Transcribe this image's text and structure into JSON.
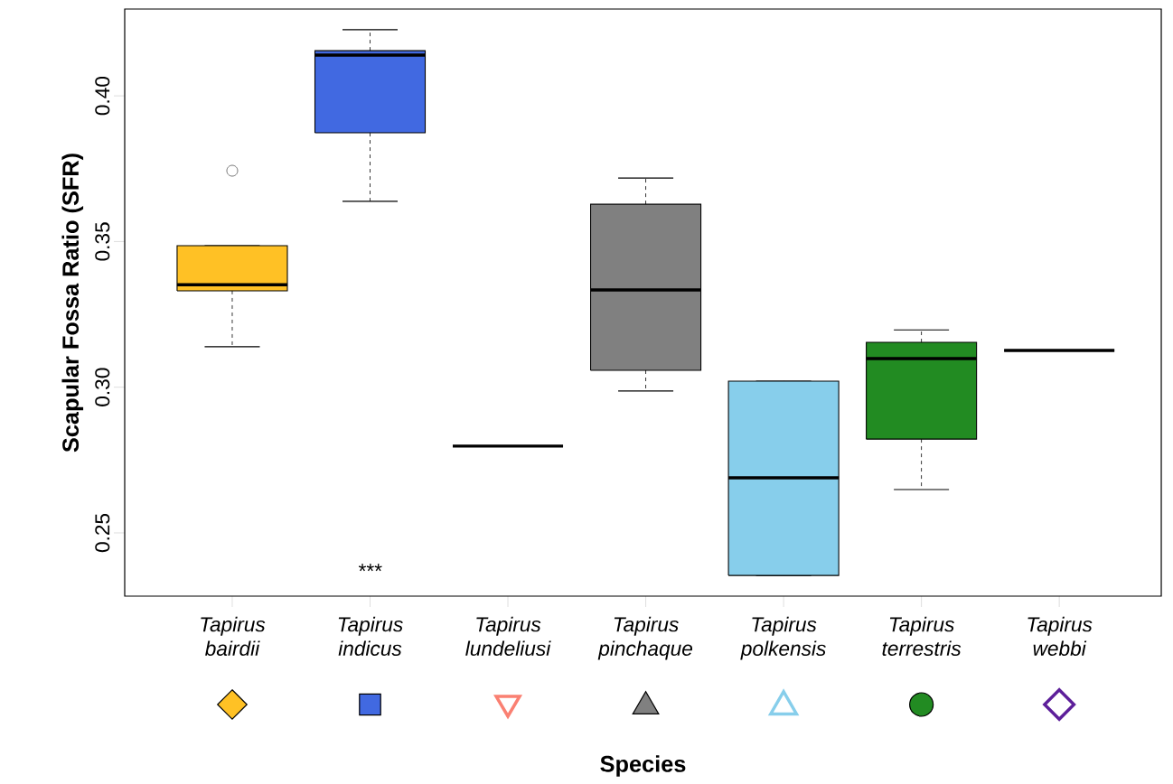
{
  "chart_data": {
    "type": "box",
    "xlabel": "Species",
    "ylabel": "Scapular Fossa Ratio (SFR)",
    "categories": [
      "Tapirus bairdii",
      "Tapirus indicus",
      "Tapirus lundeliusi",
      "Tapirus pinchaque",
      "Tapirus polkensis",
      "Tapirus terrestris",
      "Tapirus webbi"
    ],
    "colors": [
      "#ffc125",
      "#4169e1",
      null,
      "#808080",
      "#87ceeb",
      "#228b22",
      null
    ],
    "boxes": [
      {
        "low": 0.3139,
        "q1": 0.3331,
        "median": 0.3352,
        "q3": 0.3486,
        "high": 0.3486,
        "outliers": [
          0.3743
        ]
      },
      {
        "low": 0.3638,
        "q1": 0.3873,
        "median": 0.414,
        "q3": 0.4155,
        "high": 0.4227
      },
      {
        "low": 0.2798,
        "q1": 0.2798,
        "median": 0.2798,
        "q3": 0.2798,
        "high": 0.2798
      },
      {
        "low": 0.2987,
        "q1": 0.3058,
        "median": 0.3334,
        "q3": 0.3628,
        "high": 0.3718
      },
      {
        "low": 0.2354,
        "q1": 0.2354,
        "median": 0.2689,
        "q3": 0.3021,
        "high": 0.3021
      },
      {
        "low": 0.2649,
        "q1": 0.2822,
        "median": 0.3098,
        "q3": 0.3154,
        "high": 0.3197
      },
      {
        "low": 0.3126,
        "q1": 0.3126,
        "median": 0.3126,
        "q3": 0.3126,
        "high": 0.3126
      }
    ],
    "ylim": [
      0.2283,
      0.4298
    ],
    "yticks": [
      {
        "value": 0.25,
        "label": "0.25"
      },
      {
        "value": 0.3,
        "label": "0.30"
      },
      {
        "value": 0.35,
        "label": "0.35"
      },
      {
        "value": 0.4,
        "label": "0.40"
      }
    ],
    "annotations": [
      "***"
    ]
  }
}
